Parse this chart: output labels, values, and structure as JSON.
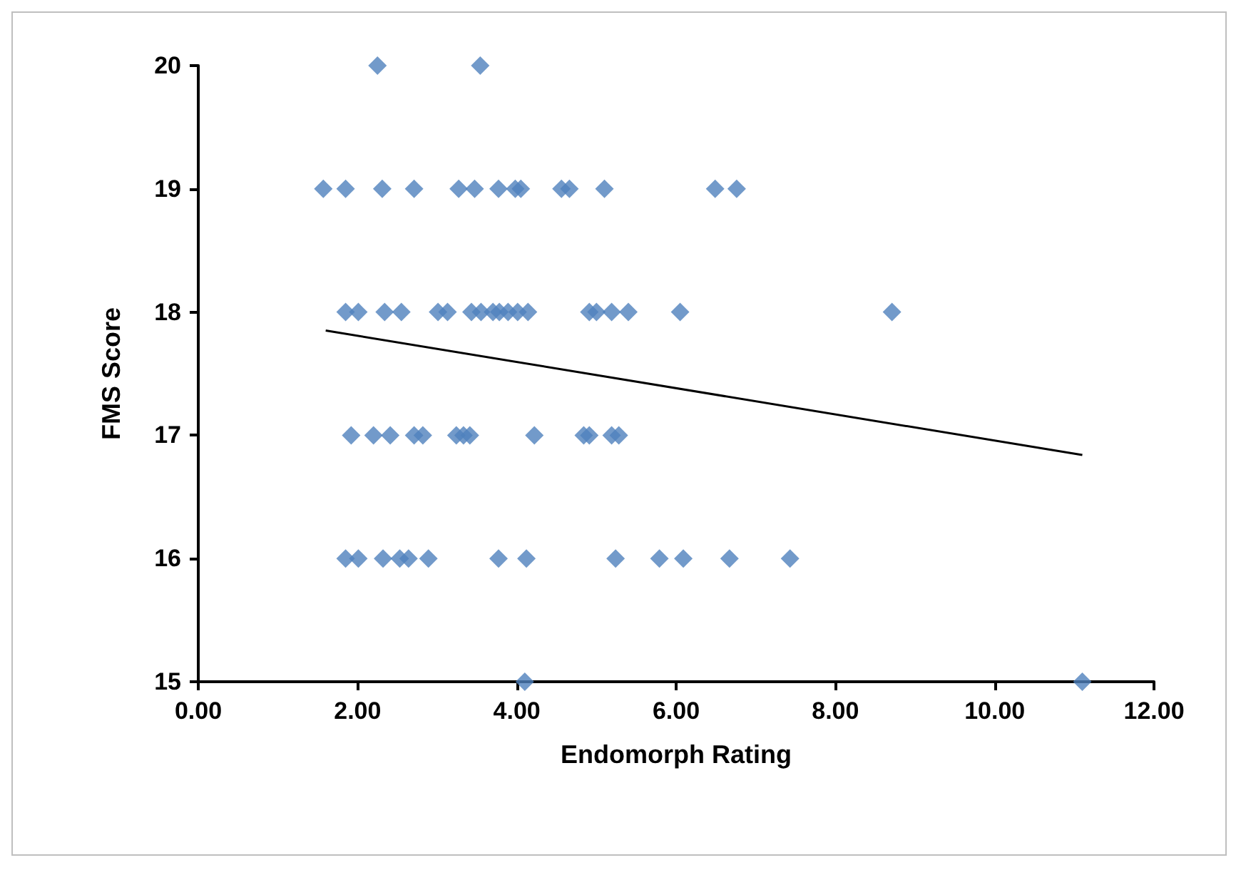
{
  "chart_data": {
    "type": "scatter",
    "xlabel": "Endomorph Rating",
    "ylabel": "FMS Score",
    "xlim": [
      0,
      12
    ],
    "xticks": [
      {
        "value": 0,
        "label": "0.00"
      },
      {
        "value": 2,
        "label": "2.00"
      },
      {
        "value": 4,
        "label": "4.00"
      },
      {
        "value": 6,
        "label": "6.00"
      },
      {
        "value": 8,
        "label": "8.00"
      },
      {
        "value": 10,
        "label": "10.00"
      },
      {
        "value": 12,
        "label": "12.00"
      }
    ],
    "ylim": [
      15,
      20
    ],
    "yticks": [
      15,
      16,
      17,
      18,
      19,
      20
    ],
    "grid": false,
    "marker": "diamond",
    "series": [
      {
        "color": "#4f81bd",
        "x": [
          2.25,
          3.54,
          1.57,
          1.85,
          2.31,
          2.71,
          3.27,
          3.47,
          3.77,
          3.98,
          4.05,
          4.56,
          4.66,
          5.1,
          6.49,
          6.76,
          1.85,
          2.01,
          2.34,
          2.55,
          3.01,
          3.13,
          3.43,
          3.55,
          3.7,
          3.78,
          3.89,
          4.01,
          4.14,
          4.91,
          5.0,
          5.19,
          5.4,
          6.05,
          8.71,
          1.92,
          2.2,
          2.41,
          2.71,
          2.82,
          3.24,
          3.33,
          3.41,
          4.22,
          4.84,
          4.91,
          5.19,
          5.28,
          1.85,
          2.01,
          2.32,
          2.53,
          2.64,
          2.89,
          3.77,
          4.12,
          5.24,
          5.79,
          6.09,
          6.67,
          7.43,
          4.1,
          11.1
        ],
        "values": [
          20,
          20,
          19,
          19,
          19,
          19,
          19,
          19,
          19,
          19,
          19,
          19,
          19,
          19,
          19,
          19,
          18,
          18,
          18,
          18,
          18,
          18,
          18,
          18,
          18,
          18,
          18,
          18,
          18,
          18,
          18,
          18,
          18,
          18,
          18,
          17,
          17,
          17,
          17,
          17,
          17,
          17,
          17,
          17,
          17,
          17,
          17,
          17,
          16,
          16,
          16,
          16,
          16,
          16,
          16,
          16,
          16,
          16,
          16,
          16,
          16,
          15,
          15
        ]
      },
      {
        "type": "line",
        "color": "#000000",
        "marker": "none",
        "line_style": "solid",
        "x": [
          1.6,
          11.1
        ],
        "values": [
          17.85,
          16.84
        ]
      }
    ]
  }
}
